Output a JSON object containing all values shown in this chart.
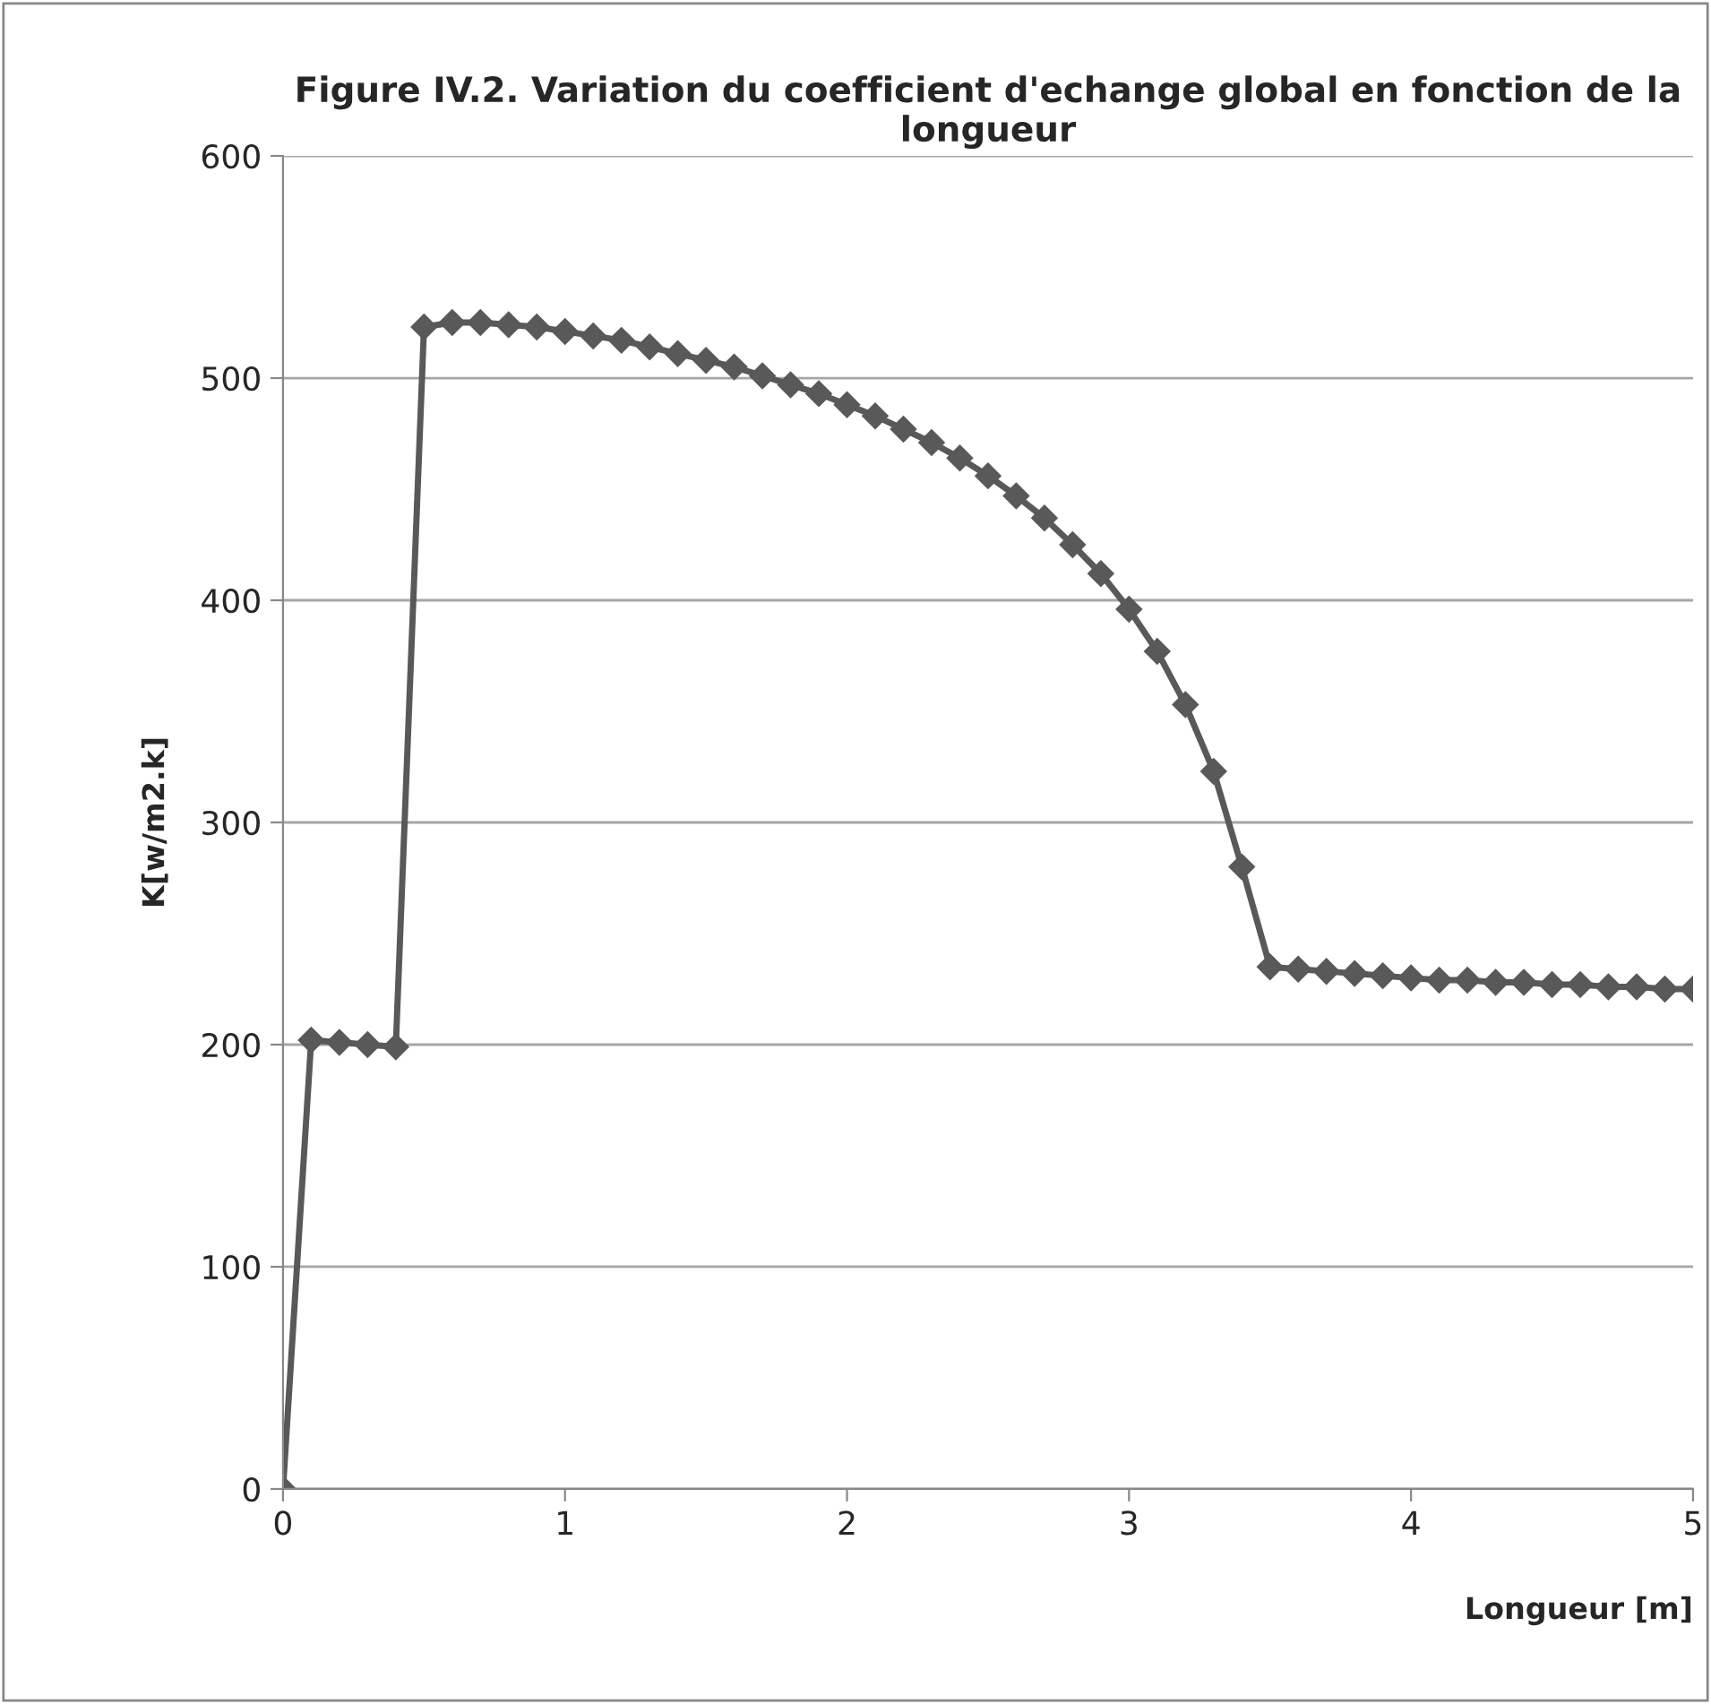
{
  "chart_data": {
    "type": "line",
    "title": "Figure IV.2. Variation du coefficient d'echange global en fonction de la longueur",
    "xlabel": "Longueur [m]",
    "ylabel": "K[w/m2.k]",
    "x": [
      0,
      0.1,
      0.2,
      0.3,
      0.4,
      0.5,
      0.6,
      0.7,
      0.8,
      0.9,
      1.0,
      1.1,
      1.2,
      1.3,
      1.4,
      1.5,
      1.6,
      1.7,
      1.8,
      1.9,
      2.0,
      2.1,
      2.2,
      2.3,
      2.4,
      2.5,
      2.6,
      2.7,
      2.8,
      2.9,
      3.0,
      3.1,
      3.2,
      3.3,
      3.4,
      3.5,
      3.6,
      3.7,
      3.8,
      3.9,
      4.0,
      4.1,
      4.2,
      4.3,
      4.4,
      4.5,
      4.6,
      4.7,
      4.8,
      4.9,
      5.0
    ],
    "series": [
      {
        "color": "#595959",
        "values": [
          0,
          202,
          201,
          200,
          199,
          523,
          525,
          525,
          524,
          523,
          521,
          519,
          517,
          514,
          511,
          508,
          505,
          501,
          497,
          493,
          488,
          483,
          477,
          471,
          464,
          456,
          447,
          437,
          425,
          412,
          396,
          377,
          353,
          323,
          280,
          235,
          234,
          233,
          232,
          231,
          230,
          229,
          229,
          228,
          228,
          227,
          227,
          226,
          226,
          225,
          225
        ]
      }
    ],
    "xlim": [
      0,
      5
    ],
    "xticks": [
      0,
      1,
      2,
      3,
      4,
      5
    ],
    "ylim": [
      0,
      600
    ],
    "yticks": [
      0,
      100,
      200,
      300,
      400,
      500,
      600
    ],
    "grid": "y",
    "marker": "diamond",
    "line_style": "solid"
  }
}
